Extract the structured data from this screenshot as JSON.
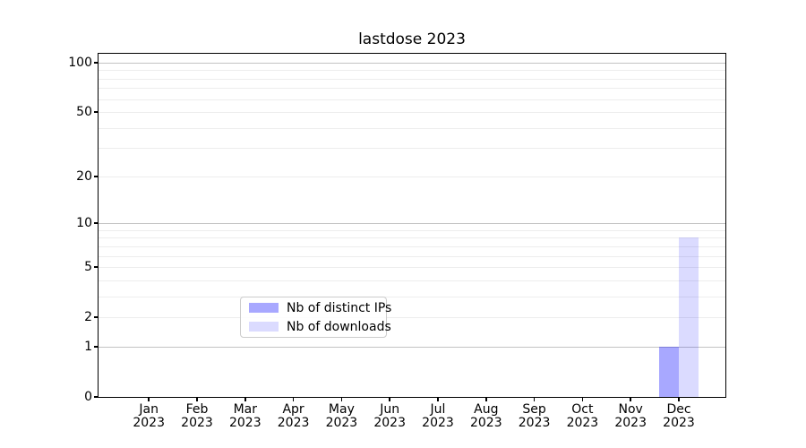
{
  "title": "lastdose 2023",
  "chart_data": {
    "type": "bar",
    "title": "lastdose 2023",
    "categories": [
      "Jan 2023",
      "Feb 2023",
      "Mar 2023",
      "Apr 2023",
      "May 2023",
      "Jun 2023",
      "Jul 2023",
      "Aug 2023",
      "Sep 2023",
      "Oct 2023",
      "Nov 2023",
      "Dec 2023"
    ],
    "series": [
      {
        "name": "Nb of distinct IPs",
        "color": "rgba(0,0,255,0.34)",
        "values": [
          0,
          0,
          0,
          0,
          0,
          0,
          0,
          0,
          0,
          0,
          0,
          1
        ]
      },
      {
        "name": "Nb of downloads",
        "color": "rgba(0,0,255,0.14)",
        "values": [
          0,
          0,
          0,
          0,
          0,
          0,
          0,
          0,
          0,
          0,
          0,
          8
        ]
      }
    ],
    "xlabel": "",
    "ylabel": "",
    "yscale": "log1p",
    "ylim": [
      0,
      113
    ],
    "y_major_ticks": [
      0,
      1,
      2,
      5,
      10,
      20,
      50,
      100
    ],
    "y_minor_gridlines": [
      3,
      4,
      6,
      7,
      8,
      9,
      30,
      40,
      60,
      70,
      80,
      90
    ],
    "grid": "horizontal",
    "legend_position": "bottom-center-inside"
  }
}
